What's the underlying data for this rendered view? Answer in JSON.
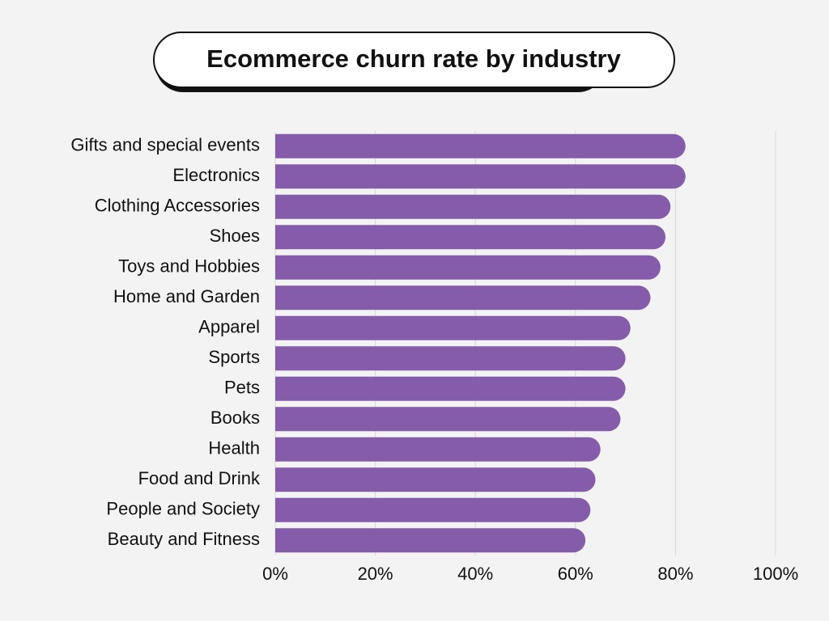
{
  "chart_data": {
    "type": "bar",
    "orientation": "horizontal",
    "title": "Ecommerce churn rate by industry",
    "categories": [
      "Gifts and special events",
      "Electronics",
      "Clothing Accessories",
      "Shoes",
      "Toys and Hobbies",
      "Home and Garden",
      "Apparel",
      "Sports",
      "Pets",
      "Books",
      "Health",
      "Food and Drink",
      "People and Society",
      "Beauty and Fitness"
    ],
    "values": [
      82,
      82,
      79,
      78,
      77,
      75,
      71,
      70,
      70,
      69,
      65,
      64,
      63,
      62
    ],
    "color": "#845ca9",
    "xlim": [
      0,
      100
    ],
    "xticks": [
      {
        "value": 0,
        "label": "0%"
      },
      {
        "value": 20,
        "label": "20%"
      },
      {
        "value": 40,
        "label": "40%"
      },
      {
        "value": 60,
        "label": "60%"
      },
      {
        "value": 80,
        "label": "80%"
      },
      {
        "value": 100,
        "label": "100%"
      }
    ],
    "grid": true
  }
}
